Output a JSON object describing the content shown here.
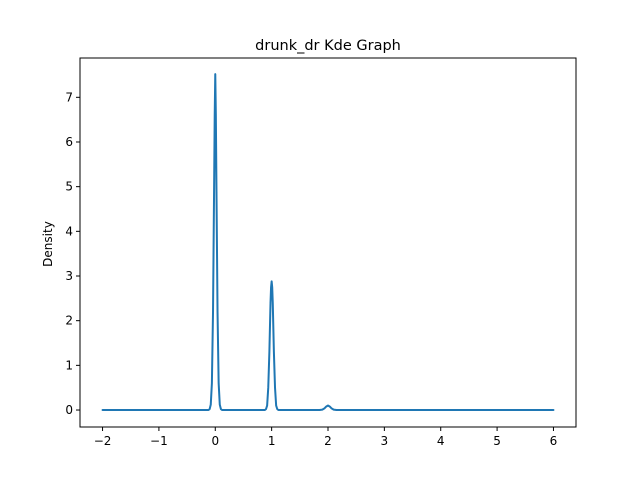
{
  "chart_data": {
    "type": "line",
    "title": "drunk_dr Kde Graph",
    "xlabel": "",
    "ylabel": "Density",
    "xlim": [
      -2.4,
      6.4
    ],
    "ylim": [
      -0.38,
      7.88
    ],
    "grid": false,
    "legend": "none",
    "x_ticks": [
      -2,
      -1,
      0,
      1,
      2,
      3,
      4,
      5,
      6
    ],
    "x_tick_labels": [
      "−2",
      "−1",
      "0",
      "1",
      "2",
      "3",
      "4",
      "5",
      "6"
    ],
    "y_ticks": [
      0,
      1,
      2,
      3,
      4,
      5,
      6,
      7
    ],
    "y_tick_labels": [
      "0",
      "1",
      "2",
      "3",
      "4",
      "5",
      "6",
      "7"
    ],
    "series": [
      {
        "color": "#1f77b4",
        "x": [
          -2.0,
          -1.0,
          -0.2,
          -0.12,
          -0.1,
          -0.08,
          -0.06,
          -0.04,
          -0.02,
          -0.01,
          0.0,
          0.01,
          0.02,
          0.04,
          0.06,
          0.08,
          0.1,
          0.12,
          0.2,
          0.5,
          0.8,
          0.88,
          0.9,
          0.92,
          0.94,
          0.96,
          0.98,
          0.99,
          1.0,
          1.01,
          1.02,
          1.04,
          1.06,
          1.08,
          1.1,
          1.12,
          1.2,
          1.5,
          1.85,
          1.9,
          1.94,
          1.97,
          2.0,
          2.03,
          2.06,
          2.1,
          2.15,
          2.5,
          3.0,
          4.0,
          5.0,
          6.0
        ],
        "y": [
          0.0,
          0.0,
          0.0,
          0.0,
          0.02,
          0.12,
          0.6,
          2.2,
          5.1,
          6.6,
          7.52,
          6.6,
          5.1,
          2.2,
          0.6,
          0.12,
          0.02,
          0.0,
          0.0,
          0.0,
          0.0,
          0.0,
          0.02,
          0.1,
          0.5,
          1.3,
          2.4,
          2.75,
          2.88,
          2.75,
          2.4,
          1.3,
          0.5,
          0.1,
          0.02,
          0.0,
          0.0,
          0.0,
          0.0,
          0.01,
          0.04,
          0.08,
          0.1,
          0.08,
          0.04,
          0.01,
          0.0,
          0.0,
          0.0,
          0.0,
          0.0,
          0.0
        ]
      }
    ]
  }
}
